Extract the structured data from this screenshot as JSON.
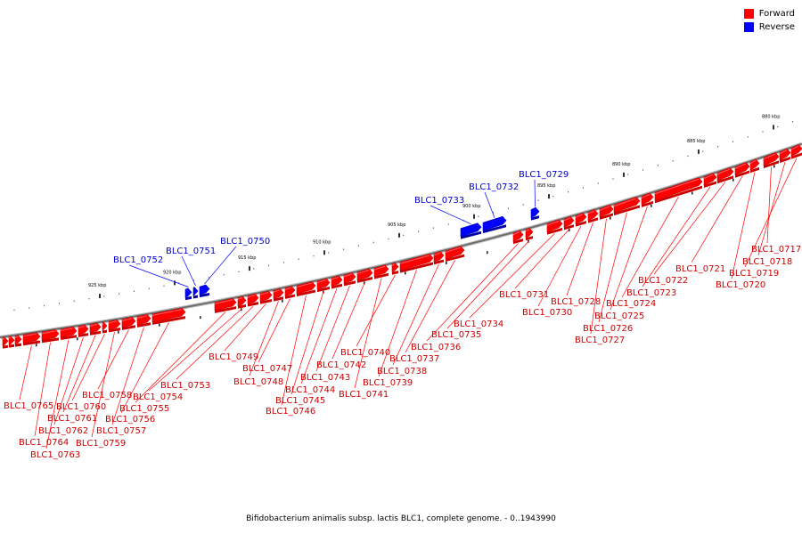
{
  "colors": {
    "forward": "#ff0000",
    "reverse": "#0000ff",
    "label_forward": "#cc0000",
    "label_reverse": "#0000cc"
  },
  "legend": [
    {
      "name": "Forward",
      "color": "#ff0000"
    },
    {
      "name": "Reverse",
      "color": "#0000ff"
    }
  ],
  "caption": "Bifidobacterium animalis subsp. lactis BLC1, complete genome. - 0..1943990",
  "scale": {
    "kbp_labels": [
      "880 kbp",
      "885 kbp",
      "890 kbp",
      "895 kbp",
      "900 kbp",
      "905 kbp",
      "910 kbp",
      "915 kbp",
      "920 kbp",
      "925 kbp"
    ]
  },
  "genes": [
    {
      "name": "BLC1_0717",
      "strand": "forward"
    },
    {
      "name": "BLC1_0718",
      "strand": "forward"
    },
    {
      "name": "BLC1_0719",
      "strand": "forward"
    },
    {
      "name": "BLC1_0720",
      "strand": "forward"
    },
    {
      "name": "BLC1_0721",
      "strand": "forward"
    },
    {
      "name": "BLC1_0722",
      "strand": "forward"
    },
    {
      "name": "BLC1_0723",
      "strand": "forward"
    },
    {
      "name": "BLC1_0724",
      "strand": "forward"
    },
    {
      "name": "BLC1_0725",
      "strand": "forward"
    },
    {
      "name": "BLC1_0726",
      "strand": "forward"
    },
    {
      "name": "BLC1_0727",
      "strand": "forward"
    },
    {
      "name": "BLC1_0728",
      "strand": "forward"
    },
    {
      "name": "BLC1_0729",
      "strand": "reverse"
    },
    {
      "name": "BLC1_0730",
      "strand": "forward"
    },
    {
      "name": "BLC1_0731",
      "strand": "forward"
    },
    {
      "name": "BLC1_0732",
      "strand": "reverse"
    },
    {
      "name": "BLC1_0733",
      "strand": "reverse"
    },
    {
      "name": "BLC1_0734",
      "strand": "forward"
    },
    {
      "name": "BLC1_0735",
      "strand": "forward"
    },
    {
      "name": "BLC1_0736",
      "strand": "forward"
    },
    {
      "name": "BLC1_0737",
      "strand": "forward"
    },
    {
      "name": "BLC1_0738",
      "strand": "forward"
    },
    {
      "name": "BLC1_0739",
      "strand": "forward"
    },
    {
      "name": "BLC1_0740",
      "strand": "forward"
    },
    {
      "name": "BLC1_0741",
      "strand": "forward"
    },
    {
      "name": "BLC1_0742",
      "strand": "forward"
    },
    {
      "name": "BLC1_0743",
      "strand": "forward"
    },
    {
      "name": "BLC1_0744",
      "strand": "forward"
    },
    {
      "name": "BLC1_0745",
      "strand": "forward"
    },
    {
      "name": "BLC1_0746",
      "strand": "forward"
    },
    {
      "name": "BLC1_0747",
      "strand": "forward"
    },
    {
      "name": "BLC1_0748",
      "strand": "forward"
    },
    {
      "name": "BLC1_0749",
      "strand": "forward"
    },
    {
      "name": "BLC1_0750",
      "strand": "reverse"
    },
    {
      "name": "BLC1_0751",
      "strand": "reverse"
    },
    {
      "name": "BLC1_0752",
      "strand": "reverse"
    },
    {
      "name": "BLC1_0753",
      "strand": "forward"
    },
    {
      "name": "BLC1_0754",
      "strand": "forward"
    },
    {
      "name": "BLC1_0755",
      "strand": "forward"
    },
    {
      "name": "BLC1_0756",
      "strand": "forward"
    },
    {
      "name": "BLC1_0757",
      "strand": "forward"
    },
    {
      "name": "BLC1_0758",
      "strand": "forward"
    },
    {
      "name": "BLC1_0759",
      "strand": "forward"
    },
    {
      "name": "BLC1_0760",
      "strand": "forward"
    },
    {
      "name": "BLC1_0761",
      "strand": "forward"
    },
    {
      "name": "BLC1_0762",
      "strand": "forward"
    },
    {
      "name": "BLC1_0763",
      "strand": "forward"
    },
    {
      "name": "BLC1_0764",
      "strand": "forward"
    },
    {
      "name": "BLC1_0765",
      "strand": "forward"
    }
  ]
}
